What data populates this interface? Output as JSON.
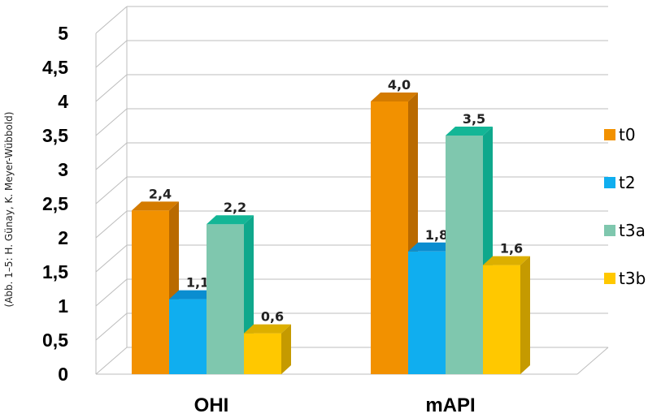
{
  "chart_data": {
    "type": "bar",
    "categories": [
      "OHI",
      "mAPI"
    ],
    "series": [
      {
        "name": "t0",
        "values": [
          2.4,
          4.0
        ],
        "labels": [
          "2,4",
          "4,0"
        ],
        "color": "#F29100",
        "side_color": "#B96A00",
        "top_color": "#D47B00"
      },
      {
        "name": "t2",
        "values": [
          1.1,
          1.8
        ],
        "labels": [
          "1,1",
          "1,8"
        ],
        "color": "#10AEEF",
        "side_color": "#0679B8",
        "top_color": "#0A8DD0"
      },
      {
        "name": "t3a",
        "values": [
          2.2,
          3.5
        ],
        "labels": [
          "2,2",
          "3,5"
        ],
        "color": "#7FC7AE",
        "side_color": "#0FA88C",
        "top_color": "#13B696"
      },
      {
        "name": "t3b",
        "values": [
          0.6,
          1.6
        ],
        "labels": [
          "0,6",
          "1,6"
        ],
        "color": "#FFC800",
        "side_color": "#C59A00",
        "top_color": "#DCAF00"
      }
    ],
    "y_ticks": [
      "0",
      "0,5",
      "1",
      "1,5",
      "2",
      "2,5",
      "3",
      "3,5",
      "4",
      "4,5",
      "5"
    ],
    "ylim": [
      0,
      5
    ],
    "grid": true,
    "legend": "right",
    "style": "3d-column"
  },
  "credit": "(Abb. 1–5: H. Günay, K. Meyer-Wübbold)"
}
